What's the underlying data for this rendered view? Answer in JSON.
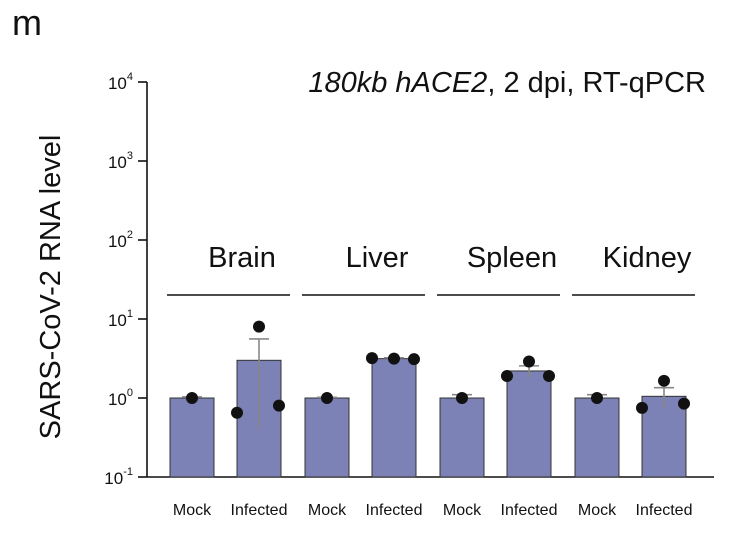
{
  "panel_label": "m",
  "chart_data": {
    "type": "bar",
    "title": "180kb hACE2, 2 dpi, RT-qPCR",
    "title_parts": [
      {
        "text": "180kb hACE2",
        "italic": true
      },
      {
        "text": ", 2 dpi, RT-qPCR",
        "italic": false
      }
    ],
    "ylabel": "SARS-CoV-2 RNA level",
    "yscale": "log",
    "ylim": [
      0.1,
      10000
    ],
    "yticks": [
      {
        "base": "10",
        "exp": "4",
        "value": 10000
      },
      {
        "base": "10",
        "exp": "3",
        "value": 1000
      },
      {
        "base": "10",
        "exp": "2",
        "value": 100
      },
      {
        "base": "10",
        "exp": "1",
        "value": 10
      },
      {
        "base": "10",
        "exp": "0",
        "value": 1
      },
      {
        "base": "10",
        "exp": "-1",
        "value": 0.1
      }
    ],
    "color": "#7c82b6",
    "groups": [
      {
        "label": "Brain",
        "bars": [
          {
            "category": "Mock",
            "value": 1.0,
            "error": 0.03,
            "points": [
              1.0
            ]
          },
          {
            "category": "Infected",
            "value": 3.0,
            "error": 2.6,
            "points": [
              8.0,
              0.65,
              0.8
            ]
          }
        ]
      },
      {
        "label": "Liver",
        "bars": [
          {
            "category": "Mock",
            "value": 1.0,
            "error": 0.02,
            "points": [
              1.0
            ]
          },
          {
            "category": "Infected",
            "value": 3.15,
            "error": 0.08,
            "points": [
              3.15,
              3.2,
              3.1
            ]
          }
        ]
      },
      {
        "label": "Spleen",
        "bars": [
          {
            "category": "Mock",
            "value": 1.0,
            "error": 0.1,
            "points": [
              1.0
            ]
          },
          {
            "category": "Infected",
            "value": 2.2,
            "error": 0.35,
            "points": [
              2.9,
              1.9,
              1.9
            ]
          }
        ]
      },
      {
        "label": "Kidney",
        "bars": [
          {
            "category": "Mock",
            "value": 1.0,
            "error": 0.1,
            "points": [
              1.0
            ]
          },
          {
            "category": "Infected",
            "value": 1.05,
            "error": 0.3,
            "points": [
              1.65,
              0.75,
              0.85
            ]
          }
        ]
      }
    ]
  }
}
